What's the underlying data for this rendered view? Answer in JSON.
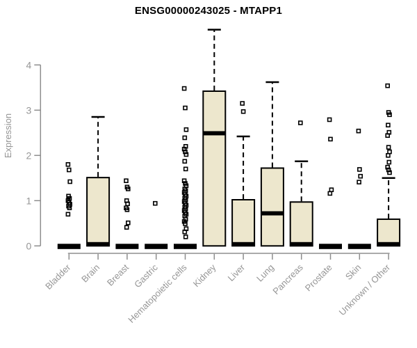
{
  "chart_data": {
    "type": "box",
    "title": "ENSG00000243025 - MTAPP1",
    "ylabel": "Expression",
    "xlabel": "",
    "ylim": [
      0,
      4.8
    ],
    "yticks": [
      0,
      1,
      2,
      3,
      4
    ],
    "grid": false,
    "legend": false,
    "box_fill_color": "#EDE7CD",
    "box_line_color": "#000000",
    "axis_color": "#8D8D8D",
    "label_color": "#969696",
    "title_color": "#000000",
    "categories": [
      "Bladder",
      "Brain",
      "Breast",
      "Gastric",
      "Hematopoietic cells",
      "Kidney",
      "Liver",
      "Lung",
      "Pancreas",
      "Prostate",
      "Skin",
      "Unknown / Other"
    ],
    "boxes": [
      {
        "label": "Bladder",
        "q1": 0,
        "median": 0,
        "q3": 0,
        "whisker_low": 0,
        "whisker_high": 0,
        "outliers": [
          1.8,
          1.68,
          1.42,
          1.1,
          1.05,
          1.0,
          0.96,
          0.92,
          0.88,
          0.84,
          0.7
        ]
      },
      {
        "label": "Brain",
        "q1": 0,
        "median": 0.02,
        "q3": 1.51,
        "whisker_low": 0,
        "whisker_high": 2.85,
        "outliers": []
      },
      {
        "label": "Breast",
        "q1": 0,
        "median": 0,
        "q3": 0,
        "whisker_low": 0,
        "whisker_high": 0,
        "outliers": [
          1.44,
          1.3,
          1.26,
          1.0,
          0.93,
          0.84,
          0.8,
          0.51,
          0.41
        ]
      },
      {
        "label": "Gastric",
        "q1": 0,
        "median": 0,
        "q3": 0,
        "whisker_low": 0,
        "whisker_high": 0,
        "outliers": [
          0.94
        ]
      },
      {
        "label": "Hematopoietic cells",
        "q1": 0,
        "median": 0,
        "q3": 0,
        "whisker_low": 0,
        "whisker_high": 0,
        "outliers": [
          3.48,
          3.05,
          2.57,
          2.39,
          2.2,
          2.14,
          2.08,
          2.02,
          1.87,
          1.7,
          1.44,
          1.38,
          1.33,
          1.26,
          1.22,
          1.18,
          1.14,
          1.1,
          1.06,
          1.02,
          0.98,
          0.94,
          0.9,
          0.86,
          0.82,
          0.78,
          0.74,
          0.7,
          0.66,
          0.59,
          0.54,
          0.49,
          0.38,
          0.31,
          0.2
        ]
      },
      {
        "label": "Kidney",
        "q1": 0,
        "median": 2.49,
        "q3": 3.42,
        "whisker_low": 0,
        "whisker_high": 4.78,
        "outliers": []
      },
      {
        "label": "Liver",
        "q1": 0,
        "median": 0.03,
        "q3": 1.02,
        "whisker_low": 0,
        "whisker_high": 2.42,
        "outliers": [
          3.15,
          2.97
        ]
      },
      {
        "label": "Lung",
        "q1": 0,
        "median": 0.72,
        "q3": 1.72,
        "whisker_low": 0,
        "whisker_high": 3.62,
        "outliers": []
      },
      {
        "label": "Pancreas",
        "q1": 0,
        "median": 0.03,
        "q3": 0.97,
        "whisker_low": 0,
        "whisker_high": 1.87,
        "outliers": [
          2.72
        ]
      },
      {
        "label": "Prostate",
        "q1": 0,
        "median": 0,
        "q3": 0,
        "whisker_low": 0,
        "whisker_high": 0,
        "outliers": [
          2.79,
          2.36,
          1.24,
          1.16
        ]
      },
      {
        "label": "Skin",
        "q1": 0,
        "median": 0,
        "q3": 0,
        "whisker_low": 0,
        "whisker_high": 0,
        "outliers": [
          2.54,
          1.69,
          1.54,
          1.41
        ]
      },
      {
        "label": "Unknown / Other",
        "q1": 0,
        "median": 0.02,
        "q3": 0.59,
        "whisker_low": 0,
        "whisker_high": 1.5,
        "outliers": [
          3.54,
          2.95,
          2.9,
          2.67,
          2.51,
          2.44,
          2.18,
          2.08,
          2.0,
          1.85,
          1.74,
          1.68,
          1.62
        ]
      }
    ]
  }
}
